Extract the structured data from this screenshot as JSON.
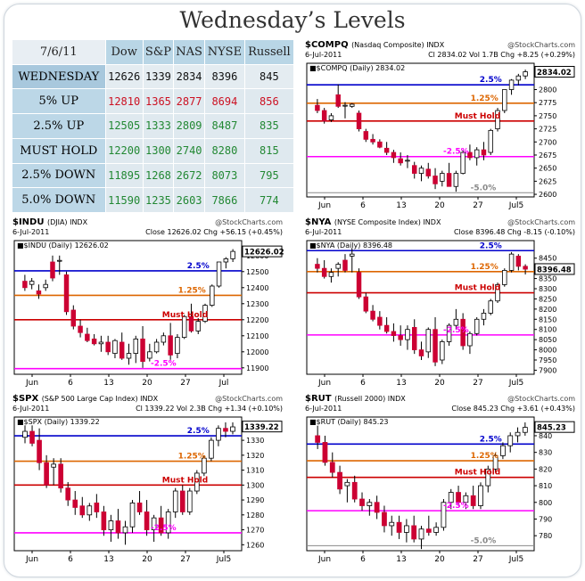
{
  "title": "Wednesday’s Levels",
  "table": {
    "date": "7/6/11",
    "headers": [
      "Dow",
      "S&P",
      "NAS",
      "NYSE",
      "Russell"
    ],
    "rows": [
      {
        "label": "WEDNESDAY",
        "values": [
          "12626",
          "1339",
          "2834",
          "8396",
          "845"
        ],
        "color": "#111111"
      },
      {
        "label": "5% UP",
        "values": [
          "12810",
          "1365",
          "2877",
          "8694",
          "856"
        ],
        "color": "#cc1122"
      },
      {
        "label": "2.5% UP",
        "values": [
          "12505",
          "1333",
          "2809",
          "8487",
          "835"
        ],
        "color": "#228833"
      },
      {
        "label": "MUST HOLD",
        "values": [
          "12200",
          "1300",
          "2740",
          "8280",
          "815"
        ],
        "color": "#228833"
      },
      {
        "label": "2.5% DOWN",
        "values": [
          "11895",
          "1268",
          "2672",
          "8073",
          "795"
        ],
        "color": "#228833"
      },
      {
        "label": "5.0% DOWN",
        "values": [
          "11590",
          "1235",
          "2603",
          "7866",
          "774"
        ],
        "color": "#228833"
      }
    ]
  },
  "chart_data": [
    {
      "type": "candlestick",
      "symbol": "$COMPQ",
      "name": "(Nasdaq Composite)",
      "exchange": "INDX",
      "source": "@StockCharts.com",
      "date": "6-Jul-2011",
      "quote": "Cl 2834.02  Vol 1.7B  Chg +8.25 (+0.29%)",
      "legend": "$COMPQ (Daily) 2834.02",
      "last": "2834.02",
      "ylim": [
        2595,
        2840
      ],
      "yticks": [
        2600,
        2625,
        2650,
        2675,
        2700,
        2725,
        2750,
        2775,
        2800
      ],
      "xticks": [
        "Jun",
        "6",
        "13",
        "20",
        "27",
        "Jul5"
      ],
      "levels": [
        {
          "label": "2.5%",
          "value": 2809,
          "color": "#0000cc"
        },
        {
          "label": "1.25%",
          "value": 2774,
          "color": "#dd6600"
        },
        {
          "label": "Must Hold",
          "value": 2740,
          "color": "#cc0000"
        },
        {
          "label": "-2.5%",
          "value": 2672,
          "color": "#ff00ff"
        },
        {
          "label": "-5.0%",
          "value": 2603,
          "color": "#888888"
        }
      ],
      "candles": [
        [
          2770,
          2782,
          2755,
          2760
        ],
        [
          2760,
          2765,
          2735,
          2740
        ],
        [
          2742,
          2755,
          2738,
          2750
        ],
        [
          2790,
          2810,
          2765,
          2768
        ],
        [
          2770,
          2776,
          2745,
          2770
        ],
        [
          2768,
          2774,
          2765,
          2772
        ],
        [
          2755,
          2760,
          2720,
          2725
        ],
        [
          2720,
          2725,
          2700,
          2705
        ],
        [
          2705,
          2715,
          2695,
          2700
        ],
        [
          2700,
          2705,
          2688,
          2690
        ],
        [
          2688,
          2700,
          2675,
          2680
        ],
        [
          2680,
          2685,
          2660,
          2670
        ],
        [
          2668,
          2680,
          2655,
          2660
        ],
        [
          2665,
          2675,
          2650,
          2665
        ],
        [
          2655,
          2662,
          2630,
          2640
        ],
        [
          2640,
          2655,
          2625,
          2650
        ],
        [
          2648,
          2660,
          2630,
          2635
        ],
        [
          2635,
          2650,
          2610,
          2620
        ],
        [
          2625,
          2645,
          2615,
          2640
        ],
        [
          2640,
          2660,
          2615,
          2615
        ],
        [
          2615,
          2645,
          2605,
          2640
        ],
        [
          2640,
          2685,
          2638,
          2680
        ],
        [
          2680,
          2695,
          2665,
          2670
        ],
        [
          2670,
          2690,
          2655,
          2685
        ],
        [
          2685,
          2700,
          2665,
          2675
        ],
        [
          2680,
          2725,
          2675,
          2722
        ],
        [
          2725,
          2765,
          2720,
          2760
        ],
        [
          2760,
          2800,
          2755,
          2800
        ],
        [
          2800,
          2820,
          2790,
          2818
        ],
        [
          2818,
          2830,
          2808,
          2826
        ],
        [
          2826,
          2838,
          2820,
          2834
        ]
      ]
    },
    {
      "type": "candlestick",
      "symbol": "$INDU",
      "name": "(DJIA)",
      "exchange": "INDX",
      "source": "@StockCharts.com",
      "date": "6-Jul-2011",
      "quote": "Close 12626.02  Chg +56.15 (+0.45%)",
      "legend": "$INDU (Daily) 12626.02",
      "last": "12626.02",
      "ylim": [
        11860,
        12660
      ],
      "yticks": [
        11900,
        12000,
        12100,
        12200,
        12300,
        12400,
        12500,
        12600
      ],
      "xticks": [
        "Jun",
        "6",
        "13",
        "20",
        "27",
        "Jul"
      ],
      "levels": [
        {
          "label": "2.5%",
          "value": 12505,
          "color": "#0000cc"
        },
        {
          "label": "1.25%",
          "value": 12352,
          "color": "#dd6600"
        },
        {
          "label": "Must Hold",
          "value": 12200,
          "color": "#cc0000"
        },
        {
          "label": "-2.5%",
          "value": 11895,
          "color": "#ff00ff"
        }
      ],
      "candles": [
        [
          12440,
          12480,
          12380,
          12400
        ],
        [
          12420,
          12460,
          12390,
          12440
        ],
        [
          12380,
          12420,
          12330,
          12360
        ],
        [
          12400,
          12450,
          12380,
          12420
        ],
        [
          12560,
          12600,
          12440,
          12460
        ],
        [
          12570,
          12600,
          12480,
          12570
        ],
        [
          12480,
          12500,
          12230,
          12250
        ],
        [
          12260,
          12290,
          12140,
          12160
        ],
        [
          12160,
          12200,
          12090,
          12120
        ],
        [
          12110,
          12150,
          12060,
          12070
        ],
        [
          12080,
          12110,
          12040,
          12050
        ],
        [
          12050,
          12100,
          12000,
          12060
        ],
        [
          12060,
          12100,
          11980,
          12000
        ],
        [
          11990,
          12080,
          11960,
          12070
        ],
        [
          12060,
          12120,
          11950,
          11960
        ],
        [
          11960,
          12050,
          11920,
          11990
        ],
        [
          11990,
          12100,
          11930,
          12080
        ],
        [
          12080,
          12160,
          11900,
          11940
        ],
        [
          11960,
          12050,
          11940,
          12000
        ],
        [
          12000,
          12080,
          11990,
          12060
        ],
        [
          12060,
          12120,
          12040,
          12100
        ],
        [
          12100,
          12180,
          11950,
          11980
        ],
        [
          11990,
          12110,
          11960,
          12090
        ],
        [
          12090,
          12230,
          12080,
          12220
        ],
        [
          12220,
          12300,
          12120,
          12130
        ],
        [
          12130,
          12210,
          12110,
          12190
        ],
        [
          12190,
          12300,
          12180,
          12290
        ],
        [
          12290,
          12420,
          12280,
          12410
        ],
        [
          12410,
          12560,
          12400,
          12560
        ],
        [
          12560,
          12590,
          12520,
          12580
        ],
        [
          12580,
          12640,
          12560,
          12626
        ]
      ]
    },
    {
      "type": "candlestick",
      "symbol": "$NYA",
      "name": "(NYSE Composite Index)",
      "exchange": "INDX",
      "source": "@StockCharts.com",
      "date": "6-Jul-2011",
      "quote": "Close 8396.48  Chg -8.15 (-0.10%)",
      "legend": "$NYA (Daily) 8396.48",
      "last": "8396.48",
      "ylim": [
        7880,
        8510
      ],
      "yticks": [
        7900,
        7950,
        8000,
        8050,
        8100,
        8150,
        8200,
        8250,
        8300,
        8350,
        8400,
        8450
      ],
      "xticks": [
        "Jun",
        "6",
        "13",
        "20",
        "27",
        "Jul5"
      ],
      "levels": [
        {
          "label": "2.5%",
          "value": 8487,
          "color": "#0000cc"
        },
        {
          "label": "1.25%",
          "value": 8384,
          "color": "#dd6600"
        },
        {
          "label": "Must Hold",
          "value": 8280,
          "color": "#cc0000"
        },
        {
          "label": "-2.5%",
          "value": 8073,
          "color": "#ff00ff"
        }
      ],
      "candles": [
        [
          8420,
          8450,
          8380,
          8400
        ],
        [
          8400,
          8440,
          8350,
          8360
        ],
        [
          8360,
          8400,
          8330,
          8380
        ],
        [
          8400,
          8430,
          8360,
          8420
        ],
        [
          8440,
          8470,
          8380,
          8390
        ],
        [
          8460,
          8500,
          8380,
          8470
        ],
        [
          8380,
          8400,
          8250,
          8260
        ],
        [
          8260,
          8280,
          8180,
          8190
        ],
        [
          8190,
          8220,
          8140,
          8150
        ],
        [
          8160,
          8190,
          8100,
          8120
        ],
        [
          8120,
          8160,
          8080,
          8090
        ],
        [
          8090,
          8130,
          8040,
          8070
        ],
        [
          8070,
          8120,
          8020,
          8050
        ],
        [
          8050,
          8120,
          8000,
          8100
        ],
        [
          8110,
          8150,
          7980,
          8000
        ],
        [
          8000,
          8040,
          7950,
          7970
        ],
        [
          7990,
          8110,
          7960,
          8100
        ],
        [
          8100,
          8160,
          7920,
          7940
        ],
        [
          7950,
          8050,
          7930,
          8040
        ],
        [
          8040,
          8130,
          8020,
          8120
        ],
        [
          8120,
          8200,
          8100,
          8150
        ],
        [
          8150,
          8180,
          8000,
          8020
        ],
        [
          8020,
          8090,
          7980,
          8080
        ],
        [
          8080,
          8160,
          8070,
          8150
        ],
        [
          8150,
          8200,
          8120,
          8180
        ],
        [
          8180,
          8250,
          8170,
          8240
        ],
        [
          8240,
          8330,
          8230,
          8320
        ],
        [
          8320,
          8400,
          8310,
          8390
        ],
        [
          8390,
          8480,
          8380,
          8470
        ],
        [
          8460,
          8470,
          8390,
          8410
        ],
        [
          8410,
          8420,
          8370,
          8396
        ]
      ]
    },
    {
      "type": "candlestick",
      "symbol": "$SPX",
      "name": "(S&P 500 Large Cap Index)",
      "exchange": "INDX",
      "source": "@StockCharts.com",
      "date": "6-Jul-2011",
      "quote": "Cl 1339.22  Vol 2.3B  Chg +1.34 (+0.10%)",
      "legend": "$SPX (Daily) 1339.22",
      "last": "1339.22",
      "ylim": [
        1256,
        1342
      ],
      "yticks": [
        1260,
        1270,
        1280,
        1290,
        1300,
        1310,
        1320,
        1330
      ],
      "xticks": [
        "Jun",
        "6",
        "13",
        "20",
        "27",
        "Jul5"
      ],
      "levels": [
        {
          "label": "2.5%",
          "value": 1333,
          "color": "#0000cc"
        },
        {
          "label": "1.25%",
          "value": 1316,
          "color": "#dd6600"
        },
        {
          "label": "Must Hold",
          "value": 1300,
          "color": "#cc0000"
        },
        {
          "label": "-2.5%",
          "value": 1268,
          "color": "#ff00ff"
        }
      ],
      "candles": [
        [
          1332,
          1340,
          1328,
          1336
        ],
        [
          1336,
          1340,
          1326,
          1328
        ],
        [
          1330,
          1338,
          1310,
          1315
        ],
        [
          1315,
          1320,
          1298,
          1300
        ],
        [
          1312,
          1318,
          1300,
          1314
        ],
        [
          1314,
          1318,
          1295,
          1298
        ],
        [
          1298,
          1302,
          1286,
          1290
        ],
        [
          1290,
          1296,
          1280,
          1285
        ],
        [
          1286,
          1292,
          1278,
          1280
        ],
        [
          1280,
          1288,
          1276,
          1286
        ],
        [
          1288,
          1294,
          1278,
          1282
        ],
        [
          1282,
          1286,
          1266,
          1270
        ],
        [
          1270,
          1280,
          1262,
          1276
        ],
        [
          1276,
          1284,
          1264,
          1268
        ],
        [
          1268,
          1276,
          1260,
          1272
        ],
        [
          1272,
          1290,
          1268,
          1288
        ],
        [
          1288,
          1296,
          1280,
          1282
        ],
        [
          1282,
          1290,
          1266,
          1270
        ],
        [
          1270,
          1280,
          1262,
          1278
        ],
        [
          1278,
          1286,
          1266,
          1268
        ],
        [
          1268,
          1284,
          1264,
          1282
        ],
        [
          1282,
          1298,
          1278,
          1296
        ],
        [
          1296,
          1300,
          1280,
          1282
        ],
        [
          1282,
          1298,
          1280,
          1296
        ],
        [
          1296,
          1310,
          1294,
          1308
        ],
        [
          1308,
          1320,
          1306,
          1318
        ],
        [
          1318,
          1332,
          1316,
          1330
        ],
        [
          1330,
          1340,
          1326,
          1338
        ],
        [
          1338,
          1342,
          1332,
          1336
        ],
        [
          1336,
          1342,
          1334,
          1339
        ]
      ]
    },
    {
      "type": "candlestick",
      "symbol": "$RUT",
      "name": "(Russell 2000)",
      "exchange": "INDX",
      "source": "@StockCharts.com",
      "date": "6-Jul-2011",
      "quote": "Close 845.23  Chg +3.61 (+0.43%)",
      "legend": "$RUT (Daily) 845.23",
      "last": "845.23",
      "ylim": [
        771,
        848
      ],
      "yticks": [
        780,
        790,
        800,
        810,
        820,
        830,
        840
      ],
      "xticks": [
        "Jun",
        "6",
        "13",
        "20",
        "27",
        "Jul5"
      ],
      "levels": [
        {
          "label": "2.5%",
          "value": 835,
          "color": "#0000cc"
        },
        {
          "label": "1.25%",
          "value": 825,
          "color": "#dd6600"
        },
        {
          "label": "Must Hold",
          "value": 815,
          "color": "#cc0000"
        },
        {
          "label": "-2.5%",
          "value": 795,
          "color": "#ff00ff"
        },
        {
          "label": "-5.0%",
          "value": 774,
          "color": "#888888"
        }
      ],
      "candles": [
        [
          840,
          846,
          832,
          836
        ],
        [
          836,
          840,
          822,
          824
        ],
        [
          824,
          830,
          815,
          818
        ],
        [
          818,
          822,
          805,
          808
        ],
        [
          810,
          814,
          800,
          812
        ],
        [
          812,
          816,
          800,
          802
        ],
        [
          802,
          806,
          795,
          798
        ],
        [
          798,
          802,
          792,
          800
        ],
        [
          800,
          804,
          790,
          794
        ],
        [
          794,
          798,
          782,
          786
        ],
        [
          786,
          792,
          780,
          788
        ],
        [
          788,
          792,
          778,
          782
        ],
        [
          782,
          790,
          776,
          786
        ],
        [
          786,
          792,
          776,
          778
        ],
        [
          778,
          786,
          772,
          784
        ],
        [
          784,
          792,
          780,
          782
        ],
        [
          782,
          788,
          780,
          785
        ],
        [
          785,
          802,
          783,
          800
        ],
        [
          800,
          808,
          796,
          806
        ],
        [
          806,
          810,
          798,
          800
        ],
        [
          800,
          806,
          796,
          804
        ],
        [
          804,
          810,
          796,
          798
        ],
        [
          798,
          812,
          796,
          810
        ],
        [
          810,
          822,
          806,
          820
        ],
        [
          820,
          830,
          818,
          828
        ],
        [
          828,
          836,
          826,
          834
        ],
        [
          834,
          842,
          830,
          840
        ],
        [
          840,
          845,
          836,
          842
        ],
        [
          842,
          848,
          840,
          845
        ]
      ]
    }
  ]
}
